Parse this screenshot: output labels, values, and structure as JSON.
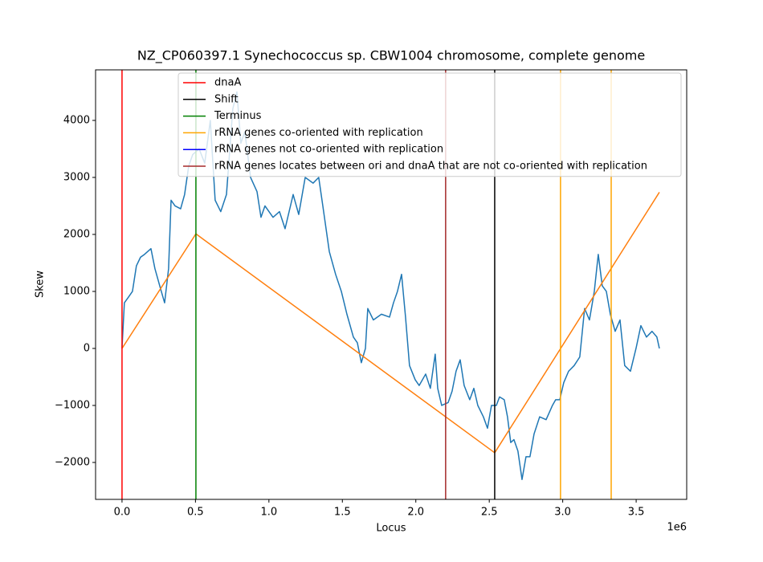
{
  "chart_data": {
    "type": "line",
    "title": "NZ_CP060397.1 Synechococcus sp. CBW1004 chromosome, complete genome",
    "x_label": "Locus",
    "y_label": "Skew",
    "x_offset_label": "1e6",
    "xlim": [
      -180000,
      3844000
    ],
    "ylim": [
      -2648,
      4887
    ],
    "xticks": [
      {
        "value": 0,
        "label": "0.0"
      },
      {
        "value": 500000,
        "label": "0.5"
      },
      {
        "value": 1000000,
        "label": "1.0"
      },
      {
        "value": 1500000,
        "label": "1.5"
      },
      {
        "value": 2000000,
        "label": "2.0"
      },
      {
        "value": 2500000,
        "label": "2.5"
      },
      {
        "value": 3000000,
        "label": "3.0"
      },
      {
        "value": 3500000,
        "label": "3.5"
      }
    ],
    "yticks": [
      {
        "value": -2000,
        "label": "−2000"
      },
      {
        "value": -1000,
        "label": "−1000"
      },
      0,
      1000,
      2000,
      3000,
      4000
    ],
    "grid": false,
    "series": [
      {
        "color": "#1f77b4",
        "x": [
          0,
          16000,
          44000,
          71000,
          98000,
          126000,
          153000,
          197000,
          224000,
          262000,
          290000,
          317000,
          334000,
          361000,
          399000,
          426000,
          454000,
          481000,
          525000,
          563000,
          601000,
          634000,
          672000,
          711000,
          754000,
          782000,
          809000,
          836000,
          875000,
          919000,
          946000,
          973000,
          1028000,
          1072000,
          1110000,
          1165000,
          1203000,
          1247000,
          1301000,
          1339000,
          1367000,
          1411000,
          1454000,
          1493000,
          1531000,
          1575000,
          1602000,
          1629000,
          1657000,
          1673000,
          1711000,
          1766000,
          1821000,
          1848000,
          1875000,
          1903000,
          1930000,
          1957000,
          1996000,
          2023000,
          2067000,
          2099000,
          2132000,
          2149000,
          2176000,
          2220000,
          2247000,
          2274000,
          2302000,
          2329000,
          2367000,
          2395000,
          2422000,
          2460000,
          2488000,
          2515000,
          2548000,
          2570000,
          2602000,
          2624000,
          2646000,
          2668000,
          2695000,
          2723000,
          2750000,
          2777000,
          2805000,
          2843000,
          2887000,
          2930000,
          2952000,
          2980000,
          3007000,
          3040000,
          3078000,
          3116000,
          3149000,
          3182000,
          3215000,
          3242000,
          3269000,
          3297000,
          3324000,
          3357000,
          3390000,
          3422000,
          3461000,
          3499000,
          3532000,
          3570000,
          3608000,
          3641000,
          3658000
        ],
        "values": [
          0,
          800,
          900,
          1000,
          1450,
          1600,
          1650,
          1750,
          1400,
          1050,
          800,
          1400,
          2600,
          2500,
          2450,
          2700,
          3200,
          3400,
          3500,
          3250,
          4000,
          2600,
          2400,
          2700,
          4200,
          4500,
          3600,
          3800,
          3000,
          2750,
          2300,
          2500,
          2300,
          2400,
          2100,
          2700,
          2350,
          3000,
          2900,
          3000,
          2500,
          1700,
          1300,
          1000,
          600,
          200,
          100,
          -250,
          0,
          700,
          500,
          600,
          550,
          800,
          1000,
          1300,
          550,
          -300,
          -550,
          -650,
          -450,
          -700,
          -100,
          -700,
          -1000,
          -950,
          -750,
          -400,
          -200,
          -650,
          -900,
          -700,
          -1000,
          -1200,
          -1400,
          -1000,
          -1000,
          -850,
          -900,
          -1200,
          -1650,
          -1600,
          -1800,
          -2300,
          -1900,
          -1900,
          -1500,
          -1200,
          -1250,
          -1000,
          -900,
          -900,
          -600,
          -400,
          -300,
          -150,
          700,
          500,
          1000,
          1650,
          1100,
          1000,
          600,
          300,
          500,
          -300,
          -400,
          0,
          400,
          200,
          300,
          200,
          0
        ]
      },
      {
        "color": "#ff7f0e",
        "x": [
          0,
          503000,
          2537000,
          3658000
        ],
        "values": [
          0,
          2010,
          -1830,
          2740
        ]
      }
    ],
    "markers": [
      {
        "name": "dnaA",
        "color": "#ff0000",
        "x": [
          0
        ]
      },
      {
        "name": "Shift",
        "color": "#000000",
        "x": [
          2537000
        ]
      },
      {
        "name": "Terminus",
        "color": "#008000",
        "x": [
          503000
        ]
      },
      {
        "name": "rRNA genes co-oriented with replication",
        "color": "#ffa500",
        "x": [
          2985000,
          3330000
        ]
      },
      {
        "name": "rRNA genes not co-oriented with replication",
        "color": "#0000ff",
        "x": []
      },
      {
        "name": "rRNA genes locates between ori and dnaA that are not co-oriented with replication",
        "color": "#a52a2a",
        "x": [
          2203000
        ]
      }
    ]
  }
}
